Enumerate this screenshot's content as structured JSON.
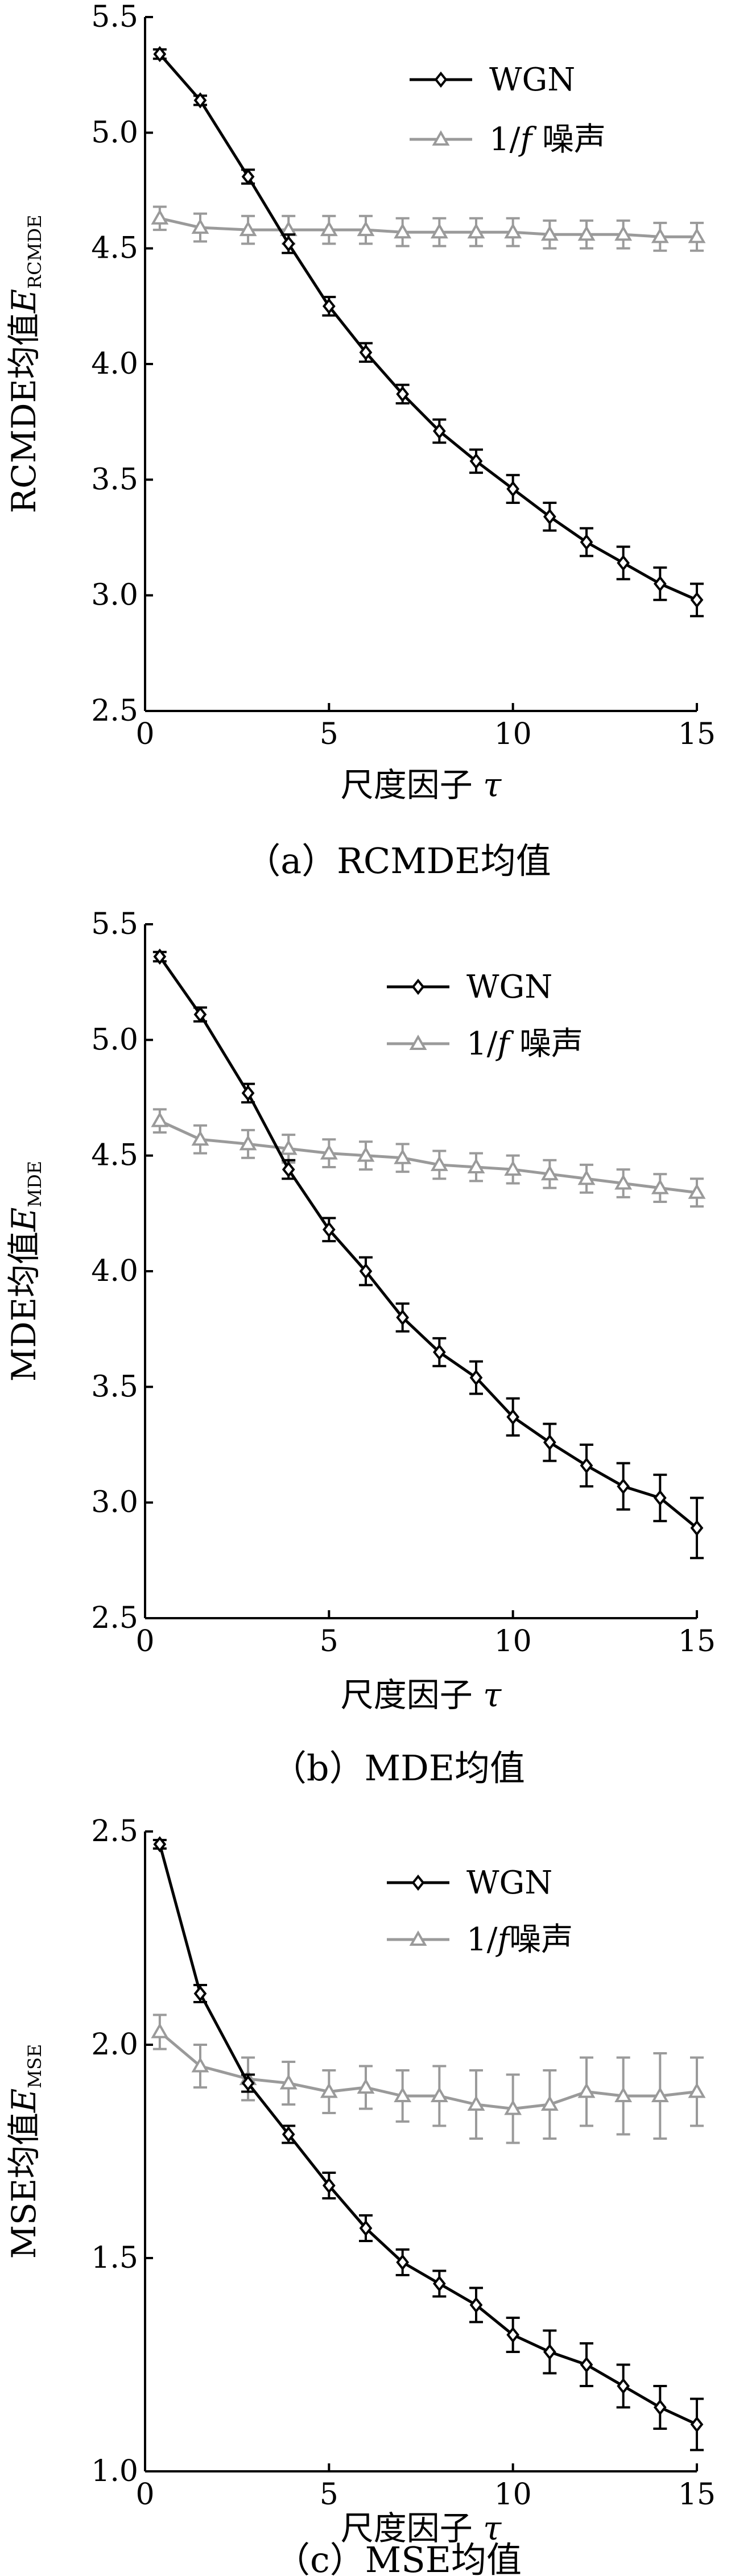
{
  "chart_data": [
    {
      "type": "line",
      "caption": "（a）RCMDE均值",
      "ylabel_main": "RCMDE均值",
      "ylabel_var": "E",
      "ylabel_sub": "RCMDE",
      "xlabel_main": "尺度因子",
      "xlabel_var": "τ",
      "xlim": [
        0,
        15
      ],
      "ylim": [
        2.5,
        5.5
      ],
      "xticks": [
        "0",
        "5",
        "10",
        "15"
      ],
      "yticks": [
        "2.5",
        "3.0",
        "3.5",
        "4.0",
        "4.5",
        "5.0",
        "5.5"
      ],
      "legend_position": "top-right",
      "series": [
        {
          "name": "WGN",
          "color": "#000000",
          "marker": "diamond",
          "x": [
            0.4,
            1.5,
            2.8,
            3.9,
            5.0,
            6.0,
            7.0,
            8.0,
            9.0,
            10.0,
            11.0,
            12.0,
            13.0,
            14.0,
            15.0
          ],
          "y": [
            5.34,
            5.14,
            4.81,
            4.52,
            4.25,
            4.05,
            3.87,
            3.71,
            3.58,
            3.46,
            3.34,
            3.23,
            3.14,
            3.05,
            2.98
          ],
          "err": [
            0.02,
            0.02,
            0.03,
            0.04,
            0.04,
            0.04,
            0.04,
            0.05,
            0.05,
            0.06,
            0.06,
            0.06,
            0.07,
            0.07,
            0.07
          ]
        },
        {
          "name": "1/f 噪声",
          "name_prefix": "1/",
          "name_var": "f",
          "name_suffix": " 噪声",
          "color": "#9a9a9a",
          "marker": "triangle",
          "x": [
            0.4,
            1.5,
            2.8,
            3.9,
            5.0,
            6.0,
            7.0,
            8.0,
            9.0,
            10.0,
            11.0,
            12.0,
            13.0,
            14.0,
            15.0
          ],
          "y": [
            4.63,
            4.59,
            4.58,
            4.58,
            4.58,
            4.58,
            4.57,
            4.57,
            4.57,
            4.57,
            4.56,
            4.56,
            4.56,
            4.55,
            4.55
          ],
          "err": [
            0.05,
            0.06,
            0.06,
            0.06,
            0.06,
            0.06,
            0.06,
            0.06,
            0.06,
            0.06,
            0.06,
            0.06,
            0.06,
            0.06,
            0.06
          ]
        }
      ]
    },
    {
      "type": "line",
      "caption": "（b）MDE均值",
      "ylabel_main": "MDE均值",
      "ylabel_var": "E",
      "ylabel_sub": "MDE",
      "xlabel_main": "尺度因子",
      "xlabel_var": "τ",
      "xlim": [
        0,
        15
      ],
      "ylim": [
        2.5,
        5.5
      ],
      "xticks": [
        "0",
        "5",
        "10",
        "15"
      ],
      "yticks": [
        "2.5",
        "3.0",
        "3.5",
        "4.0",
        "4.5",
        "5.0",
        "5.5"
      ],
      "legend_position": "top-right",
      "series": [
        {
          "name": "WGN",
          "color": "#000000",
          "marker": "diamond",
          "x": [
            0.4,
            1.5,
            2.8,
            3.9,
            5.0,
            6.0,
            7.0,
            8.0,
            9.0,
            10.0,
            11.0,
            12.0,
            13.0,
            14.0,
            15.0
          ],
          "y": [
            5.36,
            5.11,
            4.77,
            4.44,
            4.18,
            4.0,
            3.8,
            3.65,
            3.54,
            3.37,
            3.26,
            3.16,
            3.07,
            3.02,
            2.89
          ],
          "err": [
            0.02,
            0.03,
            0.04,
            0.04,
            0.05,
            0.06,
            0.06,
            0.06,
            0.07,
            0.08,
            0.08,
            0.09,
            0.1,
            0.1,
            0.13
          ]
        },
        {
          "name": "1/f 噪声",
          "name_prefix": "1/",
          "name_var": "f",
          "name_suffix": " 噪声",
          "color": "#9a9a9a",
          "marker": "triangle",
          "x": [
            0.4,
            1.5,
            2.8,
            3.9,
            5.0,
            6.0,
            7.0,
            8.0,
            9.0,
            10.0,
            11.0,
            12.0,
            13.0,
            14.0,
            15.0
          ],
          "y": [
            4.65,
            4.57,
            4.55,
            4.53,
            4.51,
            4.5,
            4.49,
            4.46,
            4.45,
            4.44,
            4.42,
            4.4,
            4.38,
            4.36,
            4.34
          ],
          "err": [
            0.05,
            0.06,
            0.06,
            0.06,
            0.06,
            0.06,
            0.06,
            0.06,
            0.06,
            0.06,
            0.06,
            0.06,
            0.06,
            0.06,
            0.06
          ]
        }
      ]
    },
    {
      "type": "line",
      "caption": "（c）MSE均值",
      "ylabel_main": "MSE均值",
      "ylabel_var": "E",
      "ylabel_sub": "MSE",
      "xlabel_main": "尺度因子",
      "xlabel_var": "τ",
      "xlim": [
        0,
        15
      ],
      "ylim": [
        1.0,
        2.5
      ],
      "xticks": [
        "0",
        "5",
        "10",
        "15"
      ],
      "yticks": [
        "1.0",
        "1.5",
        "2.0",
        "2.5"
      ],
      "legend_position": "top-right",
      "series": [
        {
          "name": "WGN",
          "color": "#000000",
          "marker": "diamond",
          "x": [
            0.4,
            1.5,
            2.8,
            3.9,
            5.0,
            6.0,
            7.0,
            8.0,
            9.0,
            10.0,
            11.0,
            12.0,
            13.0,
            14.0,
            15.0
          ],
          "y": [
            2.47,
            2.12,
            1.91,
            1.79,
            1.67,
            1.57,
            1.49,
            1.44,
            1.39,
            1.32,
            1.28,
            1.25,
            1.2,
            1.15,
            1.11
          ],
          "err": [
            0.01,
            0.02,
            0.02,
            0.02,
            0.03,
            0.03,
            0.03,
            0.03,
            0.04,
            0.04,
            0.05,
            0.05,
            0.05,
            0.05,
            0.06
          ]
        },
        {
          "name": "1/f噪声",
          "name_prefix": "1/",
          "name_var": "f",
          "name_suffix": "噪声",
          "color": "#9a9a9a",
          "marker": "triangle",
          "x": [
            0.4,
            1.5,
            2.8,
            3.9,
            5.0,
            6.0,
            7.0,
            8.0,
            9.0,
            10.0,
            11.0,
            12.0,
            13.0,
            14.0,
            15.0
          ],
          "y": [
            2.03,
            1.95,
            1.92,
            1.91,
            1.89,
            1.9,
            1.88,
            1.88,
            1.86,
            1.85,
            1.86,
            1.89,
            1.88,
            1.88,
            1.89
          ],
          "err": [
            0.04,
            0.05,
            0.05,
            0.05,
            0.05,
            0.05,
            0.06,
            0.07,
            0.08,
            0.08,
            0.08,
            0.08,
            0.09,
            0.1,
            0.08
          ]
        }
      ]
    }
  ]
}
